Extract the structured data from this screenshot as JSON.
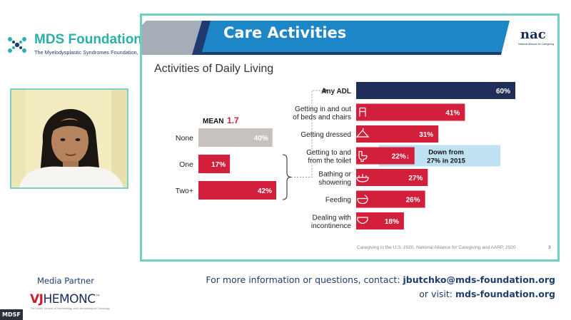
{
  "brand": {
    "title": "MDS Foundation",
    "subtitle": "The Myelodysplastic Syndromes Foundation, Inc.",
    "color": "#2ab0a8"
  },
  "slide": {
    "title": "Care Activities",
    "partner_logo": "nac",
    "partner_logo_sub": "National Alliance for Caregiving",
    "source": "Caregiving in the U.S. 2020, National Alliance for Caregiving and AARP, 2020",
    "page_number": "3"
  },
  "footer": {
    "media_label": "Media Partner",
    "media_logo_prefix": "VJ",
    "media_logo_rest": "HEMONC",
    "media_logo_tm": "™",
    "media_logo_sub": "The Video Journal of Hematology and Hematological Oncology",
    "contact_prefix": "For more information or questions, contact: ",
    "contact_email": "jbutchko@mds-foundation.org",
    "visit_prefix": "or visit: ",
    "visit_url": "mds-foundation.org",
    "corner_tag": "MDSF"
  },
  "chart_data": [
    {
      "type": "bar",
      "orientation": "horizontal",
      "title": "Activities of Daily Living",
      "annotation_label": "MEAN",
      "annotation_value": "1.7",
      "categories": [
        "None",
        "One",
        "Two+"
      ],
      "values": [
        40,
        17,
        42
      ],
      "value_labels": [
        "40%",
        "17%",
        "42%"
      ],
      "colors": [
        "#c7c2bd",
        "#d21f3c",
        "#d21f3c"
      ],
      "xlim": [
        0,
        42
      ]
    },
    {
      "type": "bar",
      "orientation": "horizontal",
      "categories": [
        "Any ADL",
        "Getting in and out of beds and chairs",
        "Getting dressed",
        "Getting to and from the toilet",
        "Bathing or showering",
        "Feeding",
        "Dealing with incontinence"
      ],
      "category_lines": [
        [
          "Any ADL"
        ],
        [
          "Getting in and out",
          "of beds and chairs"
        ],
        [
          "Getting dressed"
        ],
        [
          "Getting to and",
          "from the toilet"
        ],
        [
          "Bathing or",
          "showering"
        ],
        [
          "Feeding"
        ],
        [
          "Dealing with",
          "incontinence"
        ]
      ],
      "values": [
        60,
        41,
        31,
        22,
        27,
        26,
        18
      ],
      "value_labels": [
        "60%",
        "41%",
        "31%",
        "22%↓",
        "27%",
        "26%",
        "18%"
      ],
      "icons": [
        "",
        "chair-icon",
        "hanger-icon",
        "toilet-icon",
        "bathtub-icon",
        "bowl-icon",
        "diaper-icon"
      ],
      "colors": [
        "#1f2f5a",
        "#d21f3c",
        "#d21f3c",
        "#d21f3c",
        "#d21f3c",
        "#d21f3c",
        "#d21f3c"
      ],
      "highlight_index": 3,
      "highlight_lines": [
        "Down from",
        "27% in 2015"
      ],
      "highlight_color": "#bfe2f2",
      "xlim": [
        0,
        60
      ]
    }
  ]
}
